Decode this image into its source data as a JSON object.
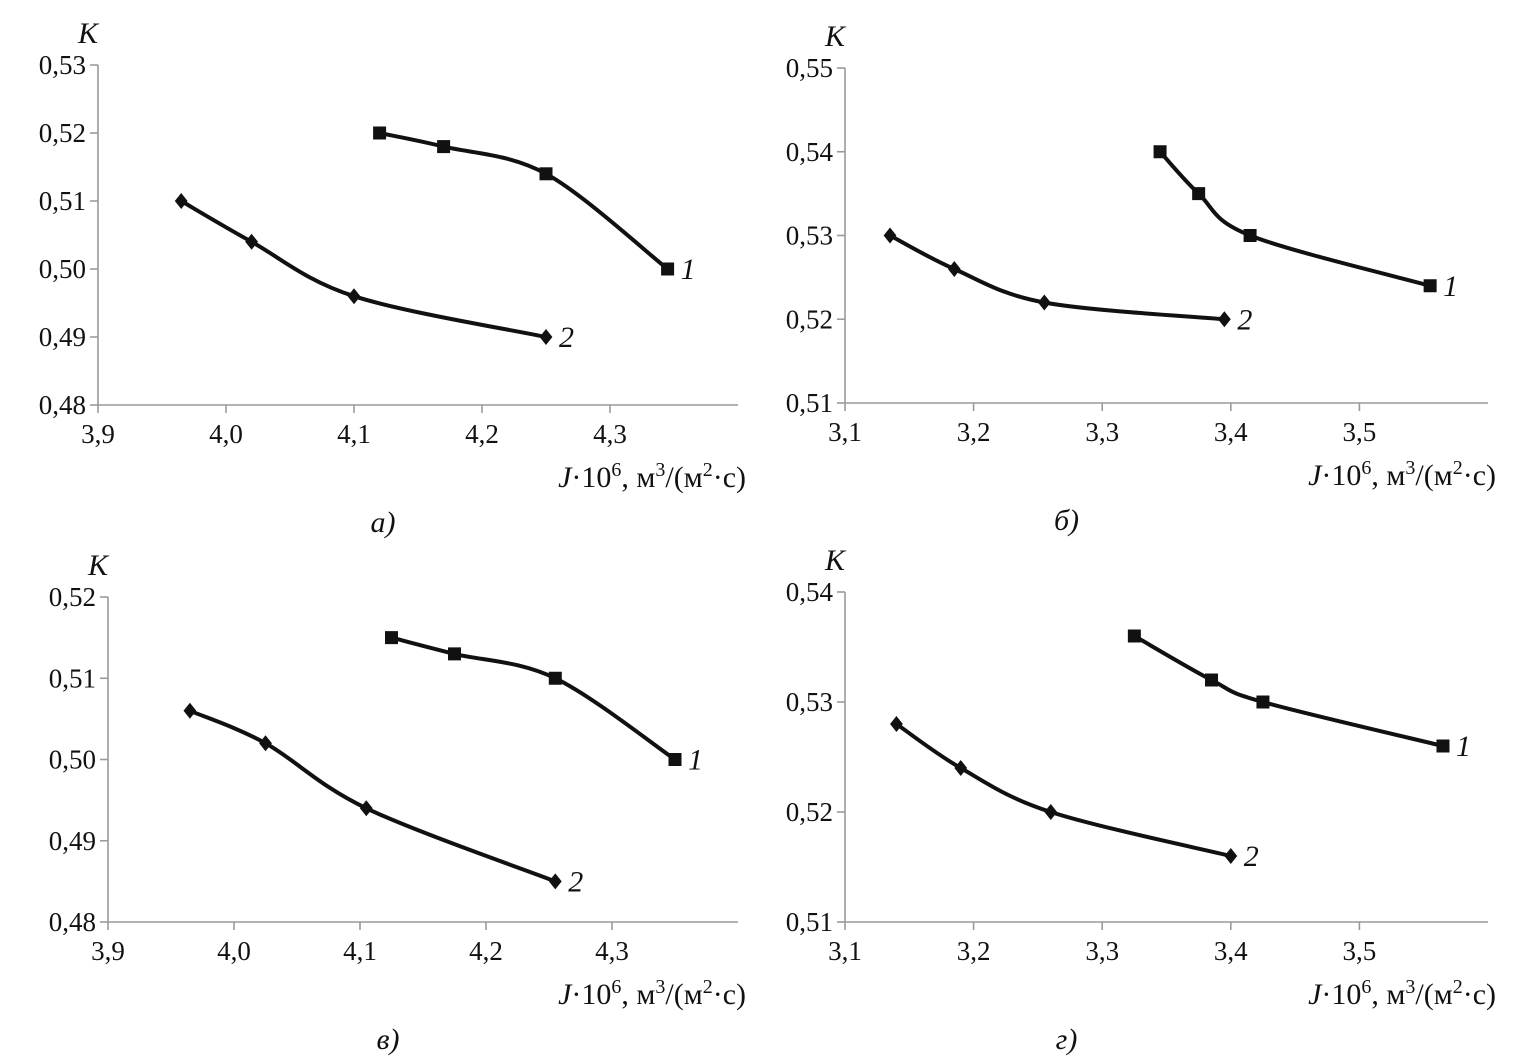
{
  "chart_data": [
    {
      "type": "line",
      "panel_label": "а)",
      "ylabel": "K",
      "xlabel": {
        "var": "J",
        "mid": "·10",
        "sup1": "6",
        "unit_a": ", м",
        "sup2": "3",
        "unit_b": "/(м",
        "sup3": "2",
        "unit_c": "·с)"
      },
      "xlim": [
        3.9,
        4.4
      ],
      "ylim": [
        0.48,
        0.53
      ],
      "x_ticks": [
        "3,9",
        "4,0",
        "4,1",
        "4,2",
        "4,3"
      ],
      "x_tick_values": [
        3.9,
        4.0,
        4.1,
        4.2,
        4.3
      ],
      "y_ticks": [
        "0,48",
        "0,49",
        "0,50",
        "0,51",
        "0,52",
        "0,53"
      ],
      "y_tick_values": [
        0.48,
        0.49,
        0.5,
        0.51,
        0.52,
        0.53
      ],
      "series": [
        {
          "name": "1",
          "marker": "square",
          "x": [
            4.12,
            4.17,
            4.25,
            4.345
          ],
          "y": [
            0.52,
            0.518,
            0.514,
            0.5
          ]
        },
        {
          "name": "2",
          "marker": "diamond",
          "x": [
            3.965,
            4.02,
            4.1,
            4.25
          ],
          "y": [
            0.51,
            0.504,
            0.496,
            0.49
          ]
        }
      ]
    },
    {
      "type": "line",
      "panel_label": "б)",
      "ylabel": "K",
      "xlabel": {
        "var": "J",
        "mid": "·10",
        "sup1": "6",
        "unit_a": ", м",
        "sup2": "3",
        "unit_b": "/(м",
        "sup3": "2",
        "unit_c": "·с)"
      },
      "xlim": [
        3.1,
        3.6
      ],
      "ylim": [
        0.51,
        0.55
      ],
      "x_ticks": [
        "3,1",
        "3,2",
        "3,3",
        "3,4",
        "3,5"
      ],
      "x_tick_values": [
        3.1,
        3.2,
        3.3,
        3.4,
        3.5
      ],
      "y_ticks": [
        "0,51",
        "0,52",
        "0,53",
        "0,54",
        "0,55"
      ],
      "y_tick_values": [
        0.51,
        0.52,
        0.53,
        0.54,
        0.55
      ],
      "series": [
        {
          "name": "1",
          "marker": "square",
          "x": [
            3.345,
            3.375,
            3.415,
            3.555
          ],
          "y": [
            0.54,
            0.535,
            0.53,
            0.524
          ]
        },
        {
          "name": "2",
          "marker": "diamond",
          "x": [
            3.135,
            3.185,
            3.255,
            3.395
          ],
          "y": [
            0.53,
            0.526,
            0.522,
            0.52
          ]
        }
      ]
    },
    {
      "type": "line",
      "panel_label": "в)",
      "ylabel": "K",
      "xlabel": {
        "var": "J",
        "mid": "·10",
        "sup1": "6",
        "unit_a": ", м",
        "sup2": "3",
        "unit_b": "/(м",
        "sup3": "2",
        "unit_c": "·с)"
      },
      "xlim": [
        3.9,
        4.4
      ],
      "ylim": [
        0.48,
        0.52
      ],
      "x_ticks": [
        "3,9",
        "4,0",
        "4,1",
        "4,2",
        "4,3"
      ],
      "x_tick_values": [
        3.9,
        4.0,
        4.1,
        4.2,
        4.3
      ],
      "y_ticks": [
        "0,48",
        "0,49",
        "0,50",
        "0,51",
        "0,52"
      ],
      "y_tick_values": [
        0.48,
        0.49,
        0.5,
        0.51,
        0.52
      ],
      "series": [
        {
          "name": "1",
          "marker": "square",
          "x": [
            4.125,
            4.175,
            4.255,
            4.35
          ],
          "y": [
            0.515,
            0.513,
            0.51,
            0.5
          ]
        },
        {
          "name": "2",
          "marker": "diamond",
          "x": [
            3.965,
            4.025,
            4.105,
            4.255
          ],
          "y": [
            0.506,
            0.502,
            0.494,
            0.485
          ]
        }
      ]
    },
    {
      "type": "line",
      "panel_label": "г)",
      "ylabel": "K",
      "xlabel": {
        "var": "J",
        "mid": "·10",
        "sup1": "6",
        "unit_a": ", м",
        "sup2": "3",
        "unit_b": "/(м",
        "sup3": "2",
        "unit_c": "·с)"
      },
      "xlim": [
        3.1,
        3.6
      ],
      "ylim": [
        0.51,
        0.54
      ],
      "x_ticks": [
        "3,1",
        "3,2",
        "3,3",
        "3,4",
        "3,5"
      ],
      "x_tick_values": [
        3.1,
        3.2,
        3.3,
        3.4,
        3.5
      ],
      "y_ticks": [
        "0,51",
        "0,52",
        "0,53",
        "0,54"
      ],
      "y_tick_values": [
        0.51,
        0.52,
        0.53,
        0.54
      ],
      "series": [
        {
          "name": "1",
          "marker": "square",
          "x": [
            3.325,
            3.385,
            3.425,
            3.565
          ],
          "y": [
            0.536,
            0.532,
            0.53,
            0.526
          ]
        },
        {
          "name": "2",
          "marker": "diamond",
          "x": [
            3.14,
            3.19,
            3.26,
            3.4
          ],
          "y": [
            0.528,
            0.524,
            0.52,
            0.516
          ]
        }
      ]
    }
  ]
}
